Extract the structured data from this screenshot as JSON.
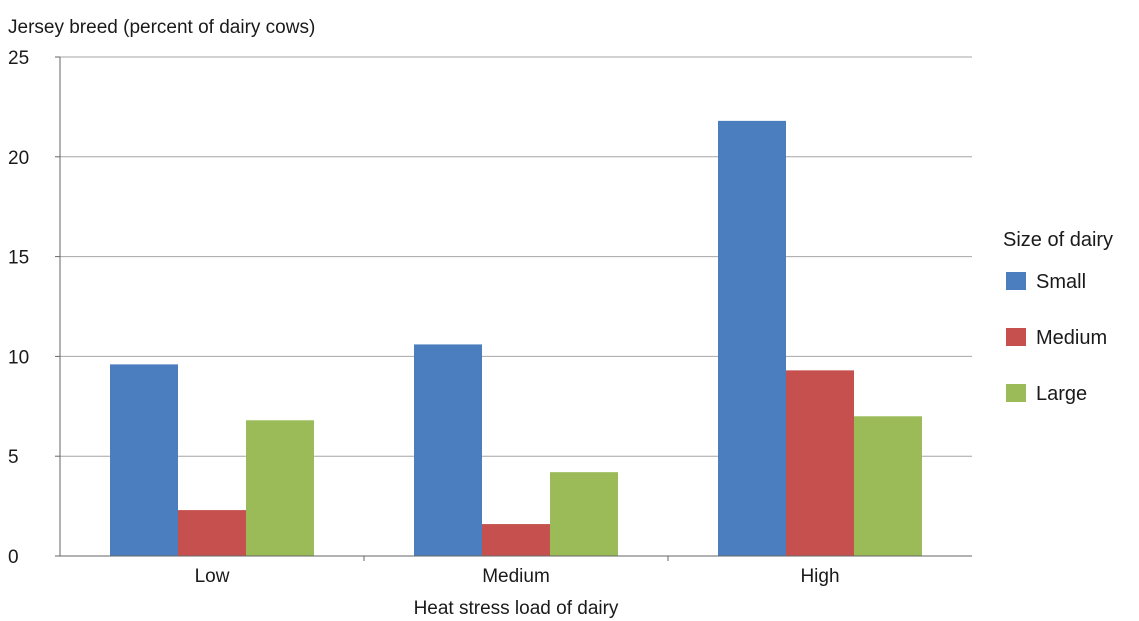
{
  "chart_data": {
    "type": "bar",
    "title": "",
    "ylabel": "Jersey breed (percent of dairy cows)",
    "xlabel": "Heat stress load of dairy",
    "categories": [
      "Low",
      "Medium",
      "High"
    ],
    "ylim": [
      0,
      25
    ],
    "yticks": [
      0,
      5,
      10,
      15,
      20,
      25
    ],
    "grid": true,
    "legend": {
      "title": "Size of dairy",
      "placement": "right"
    },
    "series": [
      {
        "name": "Small",
        "color": "#4a7ebf",
        "values": [
          9.6,
          10.6,
          21.8
        ]
      },
      {
        "name": "Medium",
        "color": "#c5504d",
        "values": [
          2.3,
          1.6,
          9.3
        ]
      },
      {
        "name": "Large",
        "color": "#9bbb59",
        "values": [
          6.8,
          4.2,
          7.0
        ]
      }
    ]
  }
}
